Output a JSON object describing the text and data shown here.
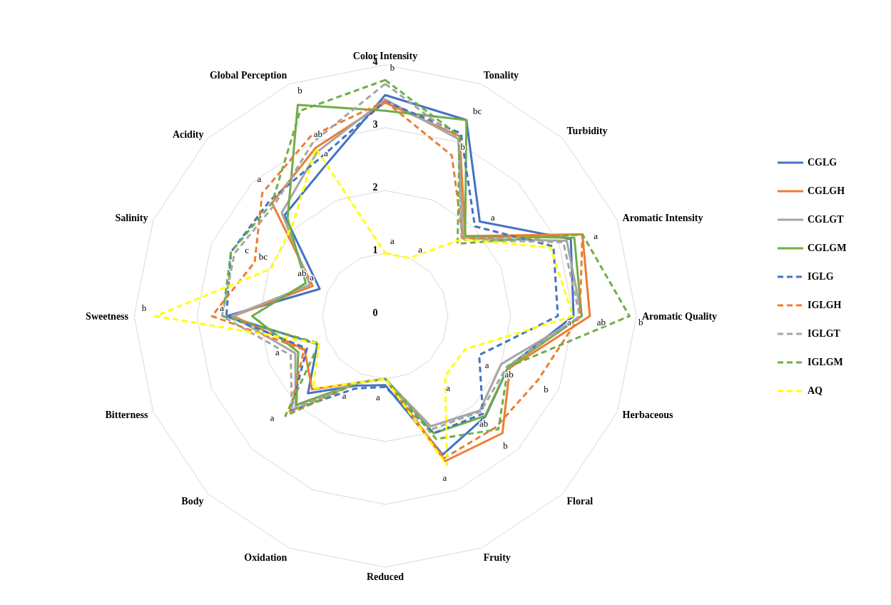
{
  "chart_data": {
    "type": "radar",
    "categories": [
      "Color Intensity",
      "Tonality",
      "Turbidity",
      "Aromatic Intensity",
      "Aromatic Quality",
      "Herbaceous",
      "Floral",
      "Fruity",
      "Reduced",
      "Oxidation",
      "Body",
      "Bitterness",
      "Sweetness",
      "Salinity",
      "Acidity",
      "Global Perception"
    ],
    "ylim": [
      0,
      4
    ],
    "yticks": [
      0,
      1,
      2,
      3,
      4
    ],
    "grid": true,
    "legend": "right",
    "series": [
      {
        "name": "CGLG",
        "color": "#4472c4",
        "line_style": "solid",
        "values": [
          3.52,
          3.38,
          2.13,
          3.2,
          3.0,
          2.12,
          2.26,
          2.39,
          1.1,
          1.2,
          1.74,
          1.17,
          2.52,
          1.13,
          2.27,
          2.56
        ],
        "value_labels": [
          null,
          null,
          "a",
          null,
          null,
          null,
          null,
          null,
          null,
          null,
          null,
          null,
          null,
          "a",
          null,
          "a"
        ]
      },
      {
        "name": "CGLGH",
        "color": "#ed7d31",
        "line_style": "solid",
        "values": [
          3.4,
          3.1,
          1.8,
          3.4,
          3.26,
          2.15,
          2.64,
          2.5,
          1.0,
          1.15,
          1.65,
          1.39,
          2.42,
          1.25,
          2.55,
          2.9
        ],
        "value_labels": [
          null,
          null,
          null,
          "a",
          "ab",
          null,
          "b",
          null,
          null,
          null,
          null,
          null,
          "a",
          null,
          null,
          null
        ]
      },
      {
        "name": "CGLGT",
        "color": "#a5a5a5",
        "line_style": "solid",
        "values": [
          3.45,
          3.05,
          1.75,
          3.13,
          3.13,
          2.0,
          2.13,
          1.9,
          1.0,
          1.15,
          2.02,
          1.55,
          2.44,
          1.3,
          2.33,
          2.83
        ],
        "value_labels": [
          null,
          null,
          null,
          null,
          null,
          "ab",
          null,
          null,
          null,
          null,
          null,
          null,
          null,
          "ab",
          null,
          null
        ]
      },
      {
        "name": "CGLGM",
        "color": "#70ad47",
        "line_style": "solid",
        "values": [
          3.27,
          3.38,
          1.8,
          3.26,
          3.13,
          2.12,
          2.25,
          2.02,
          1.0,
          1.15,
          2.0,
          1.5,
          2.12,
          1.37,
          2.2,
          3.64
        ],
        "value_labels": [
          null,
          "bc",
          null,
          null,
          null,
          null,
          null,
          null,
          null,
          null,
          null,
          null,
          null,
          null,
          null,
          "b"
        ]
      },
      {
        "name": "IGLG",
        "color": "#4472c4",
        "line_style": "dashed",
        "values": [
          3.42,
          3.15,
          2.02,
          2.9,
          2.75,
          1.62,
          2.2,
          2.02,
          1.13,
          1.25,
          2.13,
          1.35,
          2.53,
          2.66,
          2.6,
          2.72
        ],
        "value_labels": [
          null,
          null,
          null,
          null,
          "a",
          "a",
          null,
          null,
          "a",
          "a",
          null,
          null,
          null,
          null,
          null,
          null
        ]
      },
      {
        "name": "IGLGH",
        "color": "#ed7d31",
        "line_style": "dashed",
        "values": [
          3.42,
          2.77,
          1.75,
          3.4,
          3.1,
          2.64,
          2.5,
          2.45,
          1.0,
          1.15,
          2.15,
          1.4,
          2.76,
          2.25,
          2.77,
          3.1
        ],
        "value_labels": [
          null,
          "b",
          null,
          null,
          null,
          "b",
          null,
          null,
          null,
          null,
          null,
          null,
          null,
          "c",
          "a",
          null
        ]
      },
      {
        "name": "IGLGT",
        "color": "#a5a5a5",
        "line_style": "dashed",
        "values": [
          3.7,
          3.05,
          1.72,
          3.07,
          3.1,
          2.1,
          2.15,
          1.95,
          1.0,
          1.15,
          2.1,
          1.63,
          2.6,
          2.6,
          2.5,
          3.0
        ],
        "value_labels": [
          null,
          null,
          null,
          null,
          null,
          null,
          "ab",
          null,
          null,
          null,
          null,
          "a",
          null,
          null,
          null,
          null
        ]
      },
      {
        "name": "IGLGM",
        "color": "#70ad47",
        "line_style": "dashed",
        "values": [
          3.76,
          3.1,
          1.63,
          3.4,
          3.89,
          2.12,
          2.55,
          2.12,
          1.0,
          1.15,
          2.25,
          1.14,
          2.59,
          2.66,
          2.55,
          3.54
        ],
        "value_labels": [
          "b",
          null,
          null,
          null,
          "b",
          null,
          null,
          null,
          null,
          null,
          "a",
          null,
          null,
          null,
          null,
          null
        ]
      },
      {
        "name": "AQ",
        "color": "#ffff00",
        "line_style": "dashed",
        "values": [
          1.0,
          1.0,
          1.73,
          2.85,
          2.99,
          1.38,
          1.35,
          2.57,
          1.0,
          1.15,
          1.63,
          1.14,
          3.66,
          1.97,
          2.08,
          2.89
        ],
        "value_labels": [
          "a",
          "a",
          null,
          null,
          null,
          null,
          "a",
          "a",
          null,
          null,
          null,
          null,
          "b",
          "bc",
          null,
          "ab"
        ]
      }
    ]
  }
}
